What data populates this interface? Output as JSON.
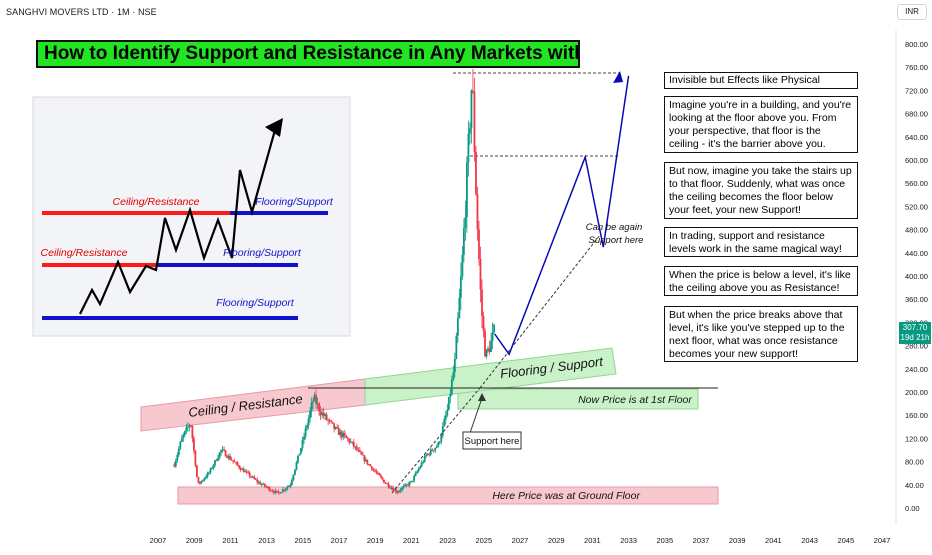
{
  "header": {
    "ticker": "SANGHVI MOVERS LTD · 1M · NSE",
    "currency": "INR",
    "price_label": "307.70",
    "time_label": "19d 21h"
  },
  "title": "How to Identify Support and Resistance in Any Markets with Anology",
  "inset": {
    "label_ceiling_upper": "Ceiling/Resistance",
    "label_flooring_upper": "Flooring/Support",
    "label_ceiling_lower": "Ceiling/Resistance",
    "label_flooring_mid": "Flooring/Support",
    "label_flooring_bottom": "Flooring/Support"
  },
  "annotations": {
    "ceiling_resistance": "Ceiling / Resistance",
    "flooring_support": "Flooring / Support",
    "now_price": "Now Price is at 1st Floor",
    "ground_floor": "Here Price was at Ground Floor",
    "support_here": "Support here",
    "can_be_again_1": "Can be again",
    "can_be_again_2": "Support here"
  },
  "notes": [
    "Invisible but Effects like Physical",
    "Imagine you're in a building, and you're looking at the floor above you. From your perspective, that floor is the ceiling - it's the barrier above you.",
    "But now, imagine you take the stairs up to that floor. Suddenly, what was once the ceiling becomes the floor below your feet, your new Support!",
    "In trading, support and resistance levels work in the same magical way!",
    "When the price is below a level, it's like the ceiling above you as Resistance!",
    "But when the price breaks above that level, it's like you've stepped up to the next floor, what was once resistance becomes your new support!"
  ],
  "colors": {
    "up": "#089981",
    "down": "#f23645",
    "projection": "#0a0ab4",
    "title_bg": "#22e422",
    "resistance_zone": "#f7c9cf",
    "support_zone": "#c9f2c9",
    "inset_red": "#ff1a1a",
    "inset_blue": "#1111cc"
  },
  "chart_data": {
    "type": "candlestick",
    "interval": "1M",
    "x_ticks": [
      "2007",
      "2009",
      "2011",
      "2013",
      "2015",
      "2017",
      "2019",
      "2021",
      "2023",
      "2025",
      "2027",
      "2029",
      "2031",
      "2033",
      "2035",
      "2037",
      "2039",
      "2041",
      "2043",
      "2045",
      "2047"
    ],
    "y_ticks": [
      "0.00",
      "40.00",
      "80.00",
      "120.00",
      "160.00",
      "200.00",
      "240.00",
      "280.00",
      "320.00",
      "360.00",
      "400.00",
      "440.00",
      "480.00",
      "520.00",
      "560.00",
      "600.00",
      "640.00",
      "680.00",
      "720.00",
      "760.00",
      "800.00"
    ],
    "ylim": [
      0,
      800
    ],
    "last_price": 307.7,
    "price_path": [
      {
        "t": 2007.9,
        "p": 75
      },
      {
        "t": 2008.3,
        "p": 118
      },
      {
        "t": 2008.8,
        "p": 148
      },
      {
        "t": 2009.2,
        "p": 40
      },
      {
        "t": 2009.8,
        "p": 60
      },
      {
        "t": 2010.5,
        "p": 100
      },
      {
        "t": 2011.5,
        "p": 70
      },
      {
        "t": 2012.5,
        "p": 45
      },
      {
        "t": 2013.6,
        "p": 25
      },
      {
        "t": 2014.3,
        "p": 40
      },
      {
        "t": 2015.0,
        "p": 115
      },
      {
        "t": 2015.6,
        "p": 190
      },
      {
        "t": 2016.0,
        "p": 165
      },
      {
        "t": 2016.8,
        "p": 135
      },
      {
        "t": 2017.6,
        "p": 115
      },
      {
        "t": 2018.5,
        "p": 80
      },
      {
        "t": 2019.5,
        "p": 45
      },
      {
        "t": 2020.2,
        "p": 28
      },
      {
        "t": 2021.0,
        "p": 45
      },
      {
        "t": 2021.8,
        "p": 90
      },
      {
        "t": 2022.5,
        "p": 110
      },
      {
        "t": 2023.0,
        "p": 170
      },
      {
        "t": 2023.4,
        "p": 250
      },
      {
        "t": 2023.8,
        "p": 420
      },
      {
        "t": 2024.1,
        "p": 590
      },
      {
        "t": 2024.35,
        "p": 745
      },
      {
        "t": 2024.6,
        "p": 520
      },
      {
        "t": 2024.85,
        "p": 350
      },
      {
        "t": 2025.1,
        "p": 260
      },
      {
        "t": 2025.4,
        "p": 285
      },
      {
        "t": 2025.6,
        "p": 307.7
      }
    ],
    "levels": [
      {
        "name": "ceiling_resistance_top",
        "value": 208
      },
      {
        "name": "peak",
        "value": 745
      },
      {
        "name": "secondary_high",
        "value": 605
      }
    ],
    "projection_path": [
      {
        "t": 2025.6,
        "p": 300
      },
      {
        "t": 2026.4,
        "p": 265
      },
      {
        "t": 2030.6,
        "p": 605
      },
      {
        "t": 2031.6,
        "p": 450
      },
      {
        "t": 2033.0,
        "p": 745
      }
    ]
  }
}
